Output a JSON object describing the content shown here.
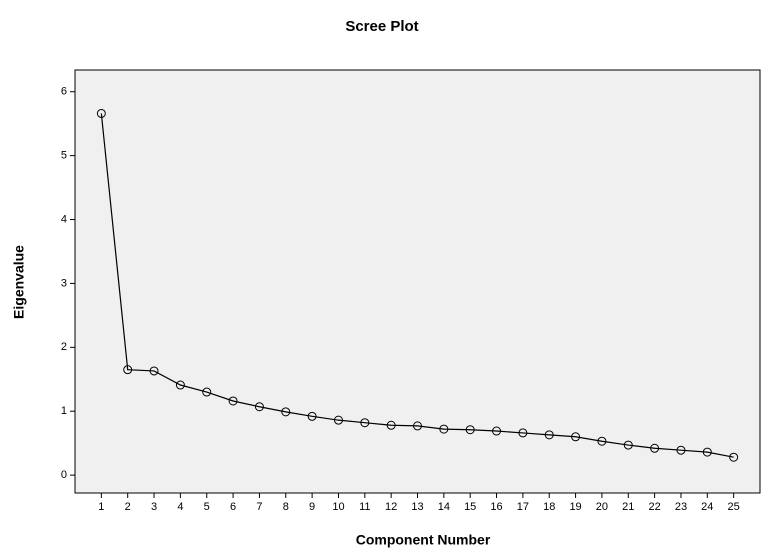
{
  "chart_data": {
    "type": "line",
    "title": "Scree Plot",
    "x_label": "Component Number",
    "y_label": "Eigenvalue",
    "x": [
      1,
      2,
      3,
      4,
      5,
      6,
      7,
      8,
      9,
      10,
      11,
      12,
      13,
      14,
      15,
      16,
      17,
      18,
      19,
      20,
      21,
      22,
      23,
      24,
      25
    ],
    "series": [
      {
        "color": "#000000",
        "values": [
          5.66,
          1.65,
          1.63,
          1.41,
          1.3,
          1.16,
          1.07,
          0.99,
          0.92,
          0.86,
          0.82,
          0.78,
          0.77,
          0.72,
          0.71,
          0.69,
          0.66,
          0.63,
          0.6,
          0.53,
          0.47,
          0.42,
          0.39,
          0.36,
          0.28
        ]
      }
    ],
    "xlim": [
      0,
      26
    ],
    "xticks": [
      1,
      2,
      3,
      4,
      5,
      6,
      7,
      8,
      9,
      10,
      11,
      12,
      13,
      14,
      15,
      16,
      17,
      18,
      19,
      20,
      21,
      22,
      23,
      24,
      25
    ],
    "ylim": [
      -0.28,
      6.34
    ],
    "yticks": [
      0,
      1,
      2,
      3,
      4,
      5,
      6
    ],
    "grid": false,
    "background": "#f0f0f0"
  }
}
